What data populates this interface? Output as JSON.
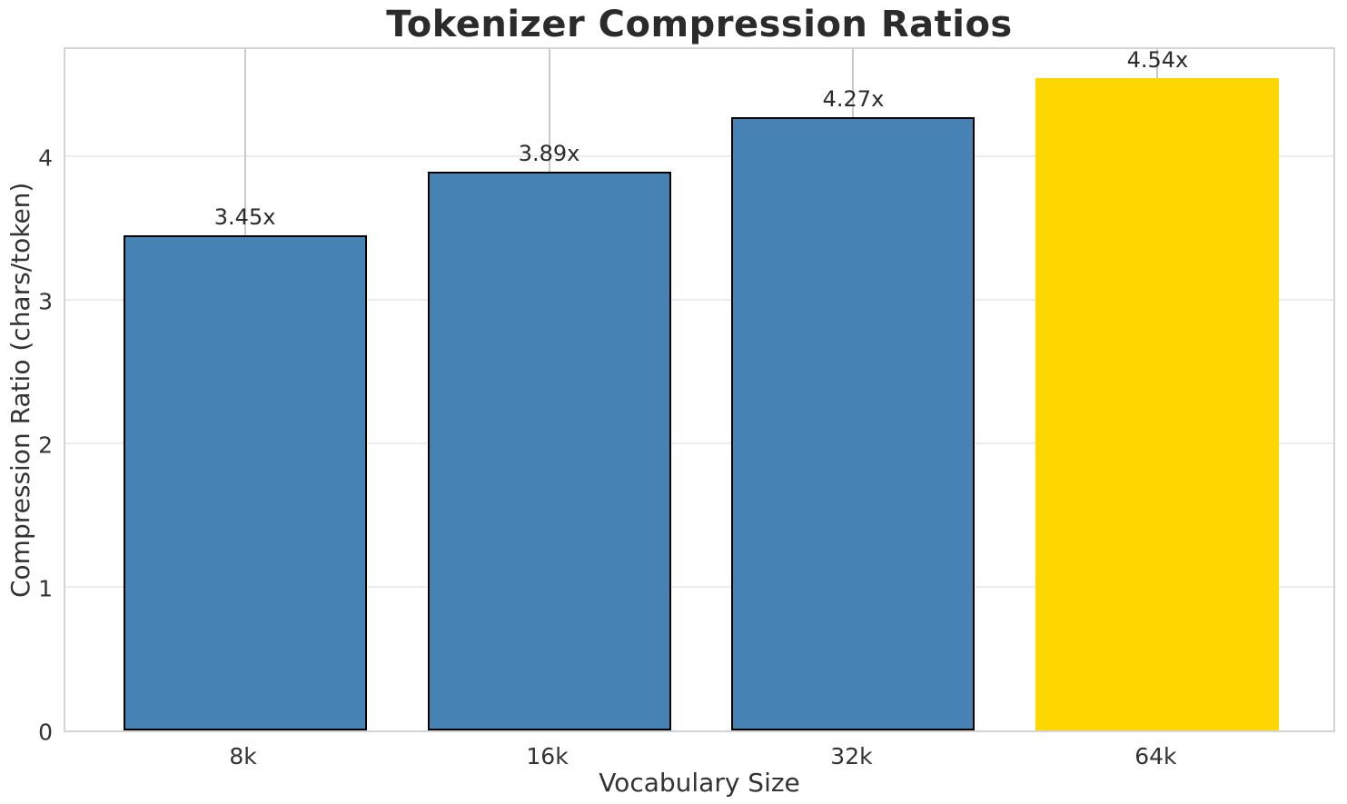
{
  "chart_data": {
    "type": "bar",
    "title": "Tokenizer Compression Ratios",
    "xlabel": "Vocabulary Size",
    "ylabel": "Compression Ratio (chars/token)",
    "categories": [
      "8k",
      "16k",
      "32k",
      "64k"
    ],
    "values": [
      3.45,
      3.89,
      4.27,
      4.54
    ],
    "value_labels": [
      "3.45x",
      "3.89x",
      "4.27x",
      "4.54x"
    ],
    "bar_fill_colors": [
      "#4682B4",
      "#4682B4",
      "#4682B4",
      "#FFD700"
    ],
    "bar_edge_colors": [
      "#000000",
      "#000000",
      "#000000",
      "#FFD700"
    ],
    "highlight_color": "#FFD700",
    "base_color": "#4682B4",
    "yticks": [
      0,
      1,
      2,
      3,
      4
    ],
    "ylim": [
      0,
      4.77
    ],
    "xlim": [
      -0.59,
      3.59
    ],
    "bar_width": 0.8,
    "grid": true,
    "grid_color_horizontal": "#ececec",
    "grid_color_vertical": "#c9c9c9",
    "spine_color": "#d4d4d4",
    "legend_position": "none"
  }
}
